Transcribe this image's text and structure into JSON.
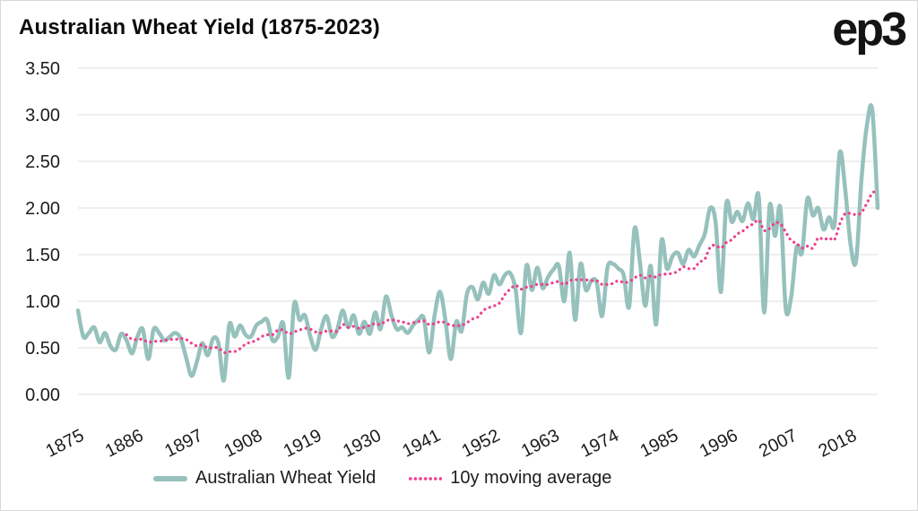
{
  "header": {
    "title": "Australian Wheat Yield (1875-2023)",
    "logo": "ep3"
  },
  "colors": {
    "yield_line": "#96c1bc",
    "moving_average_line": "#ee3f8e",
    "gridline": "#e3e3e3",
    "axis_text": "#1c1c1c",
    "title_text": "#0d0d0d"
  },
  "legend": {
    "items": [
      {
        "label": "Australian Wheat Yield",
        "style": "solid",
        "color": "#96c1bc"
      },
      {
        "label": "10y moving average",
        "style": "dotted",
        "color": "#ee3f8e"
      }
    ]
  },
  "chart_data": {
    "type": "line",
    "title": "Australian Wheat Yield (1875-2023)",
    "xlabel": "",
    "ylabel": "",
    "x_start": 1875,
    "x_end": 2023,
    "ylim": [
      0,
      3.5
    ],
    "grid": "horizontal",
    "legend_position": "bottom",
    "y_ticks": [
      "3.50",
      "3.00",
      "2.50",
      "2.00",
      "1.50",
      "1.00",
      "0.50",
      "0.00"
    ],
    "x_ticks": [
      1875,
      1886,
      1897,
      1908,
      1919,
      1930,
      1941,
      1952,
      1963,
      1974,
      1985,
      1996,
      2007,
      2018
    ],
    "series": [
      {
        "name": "Australian Wheat Yield",
        "color": "#96c1bc",
        "line_style": "solid",
        "line_width": 4.5,
        "start_year": 1875,
        "values": [
          0.9,
          0.62,
          0.66,
          0.72,
          0.56,
          0.66,
          0.52,
          0.48,
          0.65,
          0.58,
          0.44,
          0.62,
          0.7,
          0.38,
          0.7,
          0.66,
          0.58,
          0.62,
          0.66,
          0.6,
          0.4,
          0.2,
          0.35,
          0.55,
          0.42,
          0.6,
          0.55,
          0.15,
          0.75,
          0.62,
          0.74,
          0.64,
          0.62,
          0.74,
          0.78,
          0.8,
          0.58,
          0.62,
          0.76,
          0.18,
          0.97,
          0.8,
          0.85,
          0.62,
          0.48,
          0.7,
          0.84,
          0.62,
          0.7,
          0.9,
          0.72,
          0.85,
          0.65,
          0.78,
          0.65,
          0.88,
          0.7,
          1.05,
          0.85,
          0.7,
          0.72,
          0.66,
          0.74,
          0.8,
          0.82,
          0.45,
          0.85,
          1.1,
          0.8,
          0.38,
          0.78,
          0.68,
          1.08,
          1.15,
          1.02,
          1.2,
          1.08,
          1.28,
          1.18,
          1.28,
          1.3,
          1.12,
          0.66,
          1.38,
          1.12,
          1.36,
          1.14,
          1.26,
          1.34,
          1.38,
          1.0,
          1.52,
          0.8,
          1.4,
          1.12,
          1.22,
          1.2,
          0.84,
          1.36,
          1.4,
          1.35,
          1.28,
          0.94,
          1.78,
          1.42,
          0.95,
          1.38,
          0.75,
          1.65,
          1.35,
          1.48,
          1.52,
          1.4,
          1.55,
          1.48,
          1.6,
          1.72,
          2.0,
          1.85,
          1.1,
          2.05,
          1.85,
          1.96,
          1.86,
          2.05,
          1.88,
          2.12,
          0.88,
          2.02,
          1.7,
          2.0,
          0.92,
          1.05,
          1.58,
          1.52,
          2.1,
          1.92,
          2.0,
          1.77,
          1.9,
          1.82,
          2.6,
          2.2,
          1.6,
          1.43,
          2.3,
          2.88,
          3.05,
          2.0
        ]
      },
      {
        "name": "10y moving average",
        "color": "#ee3f8e",
        "line_style": "dotted",
        "line_width": 3.2,
        "start_year": 1884,
        "values": [
          0.64,
          0.59,
          0.59,
          0.59,
          0.56,
          0.57,
          0.57,
          0.58,
          0.59,
          0.59,
          0.6,
          0.59,
          0.55,
          0.52,
          0.53,
          0.5,
          0.5,
          0.5,
          0.45,
          0.46,
          0.46,
          0.49,
          0.54,
          0.56,
          0.58,
          0.62,
          0.64,
          0.64,
          0.69,
          0.69,
          0.65,
          0.67,
          0.69,
          0.71,
          0.7,
          0.67,
          0.66,
          0.68,
          0.68,
          0.68,
          0.75,
          0.72,
          0.73,
          0.71,
          0.72,
          0.74,
          0.76,
          0.75,
          0.79,
          0.8,
          0.79,
          0.78,
          0.76,
          0.77,
          0.78,
          0.79,
          0.75,
          0.76,
          0.78,
          0.77,
          0.74,
          0.74,
          0.74,
          0.77,
          0.81,
          0.83,
          0.9,
          0.93,
          0.95,
          0.98,
          1.07,
          1.13,
          1.17,
          1.13,
          1.15,
          1.16,
          1.18,
          1.18,
          1.18,
          1.2,
          1.21,
          1.18,
          1.22,
          1.23,
          1.23,
          1.23,
          1.22,
          1.22,
          1.18,
          1.18,
          1.19,
          1.22,
          1.2,
          1.21,
          1.25,
          1.28,
          1.25,
          1.27,
          1.26,
          1.29,
          1.29,
          1.3,
          1.32,
          1.37,
          1.35,
          1.35,
          1.42,
          1.45,
          1.58,
          1.6,
          1.57,
          1.63,
          1.66,
          1.72,
          1.75,
          1.8,
          1.83,
          1.87,
          1.76,
          1.78,
          1.84,
          1.83,
          1.74,
          1.65,
          1.62,
          1.57,
          1.59,
          1.57,
          1.68,
          1.66,
          1.68,
          1.66,
          1.83,
          1.94,
          1.94,
          1.93,
          1.95,
          2.05,
          2.16,
          2.18
        ]
      }
    ]
  }
}
